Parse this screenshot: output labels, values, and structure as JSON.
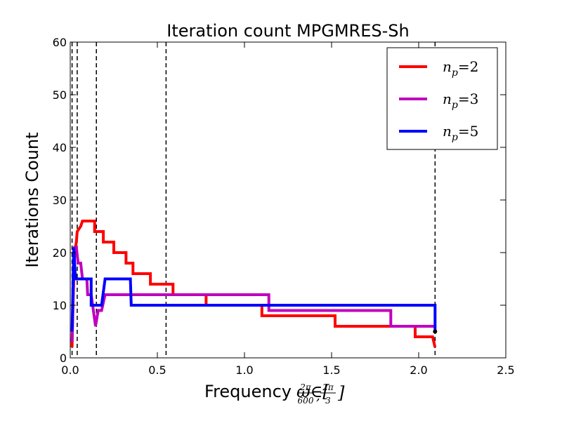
{
  "chart_data": {
    "type": "line",
    "title": "Iteration count MPGMRES-Sh",
    "xlabel_prefix": "Frequency",
    "xlabel_math": "ω∈[",
    "xlabel_frac1_num": "2π",
    "xlabel_frac1_den": "600",
    "xlabel_frac2_num": "2π",
    "xlabel_frac2_den": "3",
    "xlabel_close": "]",
    "ylabel": "Iterations Count",
    "xlim": [
      0,
      2.5
    ],
    "ylim": [
      0,
      60
    ],
    "xticks": [
      0,
      0.5,
      1,
      1.5,
      2,
      2.5
    ],
    "xtick_labels": [
      "0.0",
      "0.5",
      "1.0",
      "1.5",
      "2.0",
      "2.5"
    ],
    "yticks": [
      0,
      10,
      20,
      30,
      40,
      50,
      60
    ],
    "ytick_labels": [
      "0",
      "10",
      "20",
      "30",
      "40",
      "50",
      "60"
    ],
    "vlines": [
      0.0105,
      0.04,
      0.15,
      0.55,
      2.094
    ],
    "legend_position": "top-right",
    "series": [
      {
        "name": "n_p=2",
        "legend_sub": "p",
        "legend_value": "=2",
        "color": "#ff0000",
        "points": [
          [
            0.0105,
            2
          ],
          [
            0.015,
            10
          ],
          [
            0.02,
            15
          ],
          [
            0.025,
            20
          ],
          [
            0.035,
            22
          ],
          [
            0.04,
            24
          ],
          [
            0.06,
            25
          ],
          [
            0.07,
            26
          ],
          [
            0.14,
            26
          ],
          [
            0.14,
            24
          ],
          [
            0.19,
            24
          ],
          [
            0.19,
            22
          ],
          [
            0.25,
            22
          ],
          [
            0.25,
            20
          ],
          [
            0.32,
            20
          ],
          [
            0.32,
            18
          ],
          [
            0.36,
            18
          ],
          [
            0.36,
            16
          ],
          [
            0.46,
            16
          ],
          [
            0.46,
            14
          ],
          [
            0.59,
            14
          ],
          [
            0.59,
            12
          ],
          [
            0.78,
            12
          ],
          [
            0.78,
            10
          ],
          [
            1.1,
            10
          ],
          [
            1.1,
            8
          ],
          [
            1.52,
            8
          ],
          [
            1.52,
            6
          ],
          [
            1.98,
            6
          ],
          [
            1.98,
            4
          ],
          [
            2.08,
            4
          ],
          [
            2.094,
            2
          ]
        ]
      },
      {
        "name": "n_p=3",
        "legend_sub": "p",
        "legend_value": "=3",
        "color": "#bf00bf",
        "points": [
          [
            0.0105,
            3
          ],
          [
            0.02,
            15
          ],
          [
            0.025,
            21
          ],
          [
            0.035,
            21
          ],
          [
            0.045,
            18
          ],
          [
            0.06,
            18
          ],
          [
            0.07,
            15
          ],
          [
            0.095,
            15
          ],
          [
            0.1,
            12
          ],
          [
            0.12,
            12
          ],
          [
            0.145,
            6
          ],
          [
            0.16,
            9
          ],
          [
            0.18,
            9
          ],
          [
            0.2,
            12
          ],
          [
            1.14,
            12
          ],
          [
            1.14,
            9
          ],
          [
            1.84,
            9
          ],
          [
            1.84,
            6
          ],
          [
            2.094,
            6
          ]
        ]
      },
      {
        "name": "n_p=5",
        "legend_sub": "p",
        "legend_value": "=5",
        "color": "#0000ff",
        "points": [
          [
            0.0105,
            5
          ],
          [
            0.02,
            21
          ],
          [
            0.03,
            15
          ],
          [
            0.12,
            15
          ],
          [
            0.12,
            10
          ],
          [
            0.18,
            10
          ],
          [
            0.2,
            15
          ],
          [
            0.345,
            15
          ],
          [
            0.35,
            10
          ],
          [
            2.094,
            10
          ],
          [
            2.094,
            5
          ]
        ]
      }
    ]
  }
}
